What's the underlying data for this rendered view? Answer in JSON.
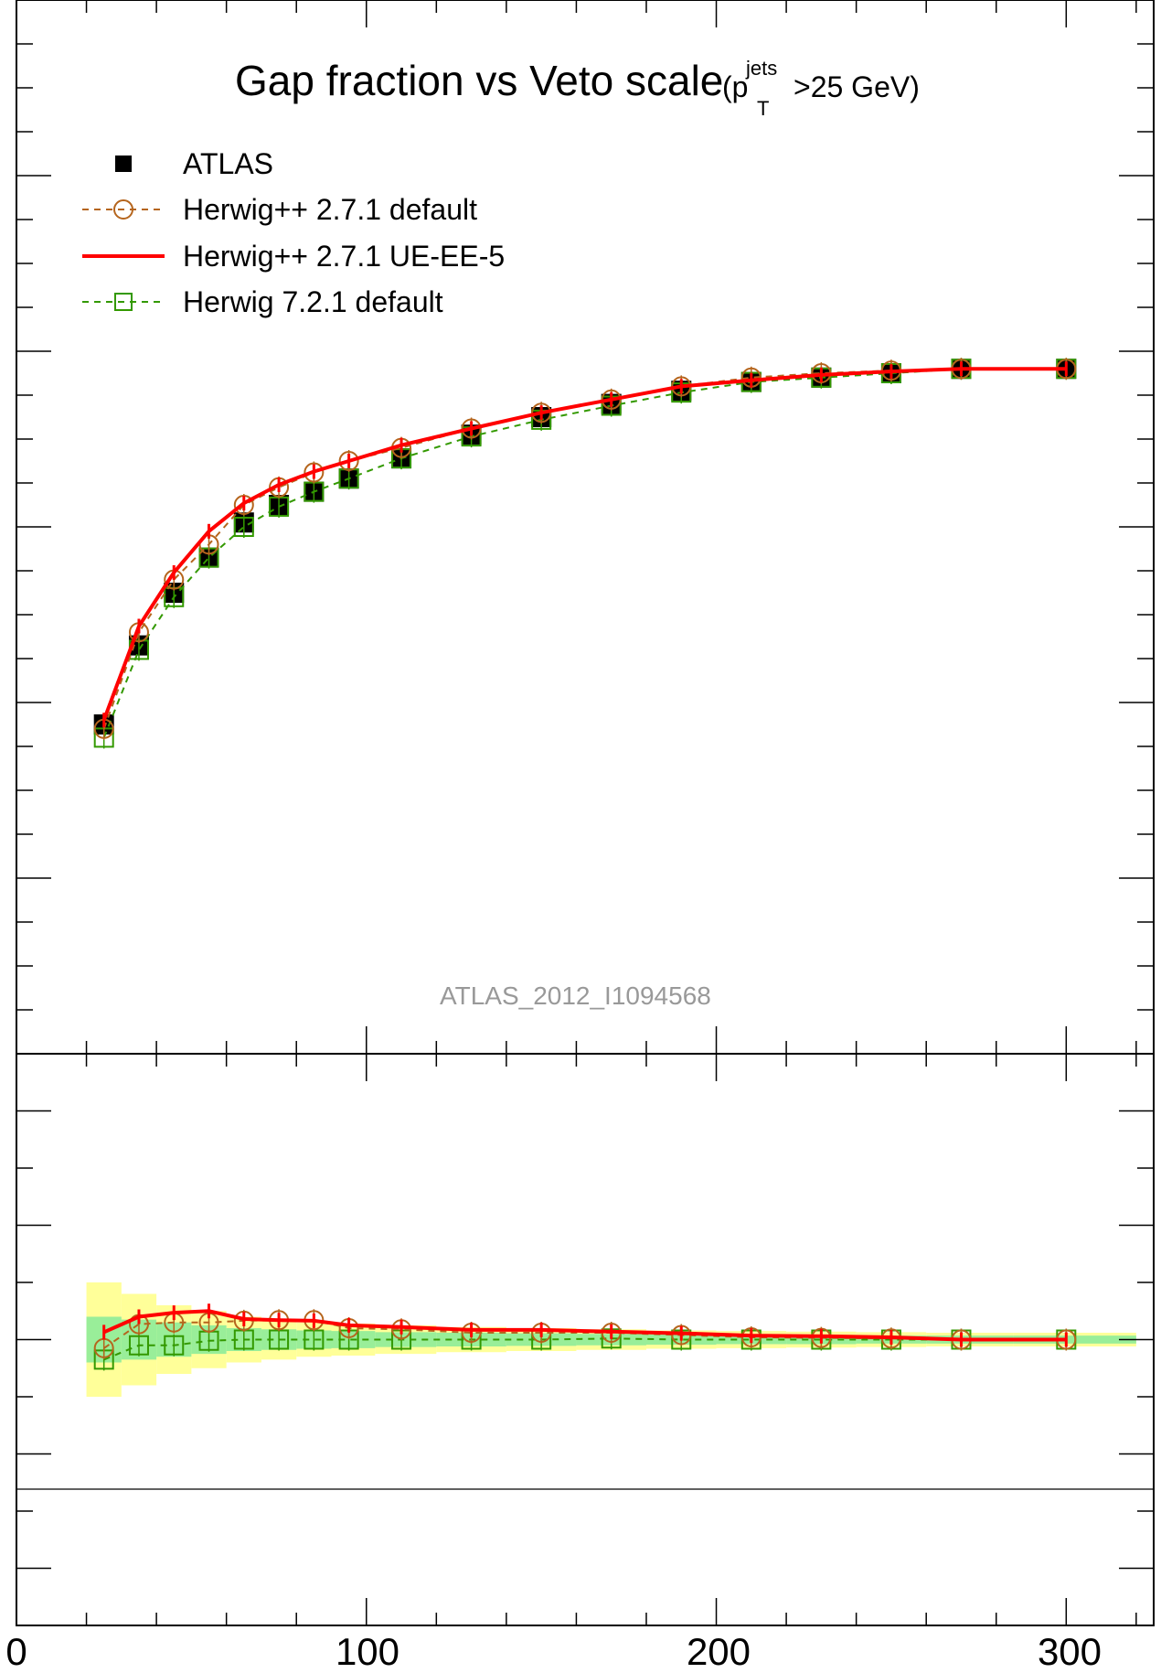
{
  "chart_data": [
    {
      "type": "line",
      "title": "Gap fraction vs Veto scale",
      "title_suffix": {
        "open": "(p",
        "superscript": "jets",
        "subscript": "T",
        "close": ">25 GeV)"
      },
      "watermark": "ATLAS_2012_I1094568",
      "xlim": [
        0,
        325
      ],
      "ylim": [
        0,
        1.2
      ],
      "grid": false,
      "legend_position": "top-left",
      "x": [
        25,
        35,
        45,
        55,
        65,
        75,
        85,
        95,
        110,
        130,
        150,
        170,
        190,
        210,
        230,
        250,
        270,
        300
      ],
      "series": [
        {
          "name": "ATLAS",
          "style": "black-filled-square",
          "color": "#000000",
          "values": [
            0.375,
            0.465,
            0.525,
            0.565,
            0.605,
            0.625,
            0.64,
            0.655,
            0.678,
            0.705,
            0.725,
            0.74,
            0.755,
            0.765,
            0.77,
            0.775,
            0.78,
            0.78
          ]
        },
        {
          "name": "Herwig++ 2.7.1 default",
          "style": "dashed-open-circle",
          "color": "#b5651d",
          "values": [
            0.37,
            0.48,
            0.54,
            0.58,
            0.625,
            0.645,
            0.662,
            0.675,
            0.69,
            0.712,
            0.73,
            0.745,
            0.76,
            0.77,
            0.775,
            0.778,
            0.78,
            0.78
          ]
        },
        {
          "name": "Herwig++ 2.7.1 UE-EE-5",
          "style": "solid-line",
          "color": "#ff0000",
          "values": [
            0.38,
            0.487,
            0.548,
            0.595,
            0.627,
            0.648,
            0.663,
            0.675,
            0.693,
            0.712,
            0.73,
            0.745,
            0.76,
            0.767,
            0.773,
            0.777,
            0.78,
            0.78
          ]
        },
        {
          "name": "Herwig 7.2.1 default",
          "style": "dashed-open-square",
          "color": "#339900",
          "values": [
            0.36,
            0.46,
            0.52,
            0.565,
            0.6,
            0.623,
            0.64,
            0.655,
            0.678,
            0.703,
            0.722,
            0.738,
            0.753,
            0.765,
            0.77,
            0.775,
            0.78,
            0.78
          ]
        }
      ]
    },
    {
      "type": "line",
      "title": "",
      "xlim": [
        0,
        325
      ],
      "ylim": [
        0.5,
        1.5
      ],
      "grid": false,
      "x_tick_labels": [
        "0",
        "100",
        "200",
        "300"
      ],
      "x_tick_values": [
        0,
        100,
        200,
        300
      ],
      "x": [
        25,
        35,
        45,
        55,
        65,
        75,
        85,
        95,
        110,
        130,
        150,
        170,
        190,
        210,
        230,
        250,
        270,
        300
      ],
      "band_stat_sys": [
        0.1,
        0.08,
        0.06,
        0.05,
        0.04,
        0.035,
        0.03,
        0.028,
        0.025,
        0.022,
        0.02,
        0.018,
        0.016,
        0.015,
        0.014,
        0.013,
        0.012,
        0.012
      ],
      "band_stat": [
        0.04,
        0.035,
        0.03,
        0.025,
        0.02,
        0.018,
        0.016,
        0.015,
        0.013,
        0.012,
        0.011,
        0.01,
        0.009,
        0.008,
        0.008,
        0.007,
        0.007,
        0.007
      ],
      "band_colors": {
        "stat_sys": "#ffff99",
        "stat": "#99ee99"
      },
      "series": [
        {
          "name": "Herwig++ 2.7.1 default",
          "color": "#b5651d",
          "values": [
            0.985,
            1.027,
            1.03,
            1.03,
            1.033,
            1.034,
            1.034,
            1.02,
            1.018,
            1.012,
            1.012,
            1.012,
            1.008,
            1.004,
            1.003,
            1.002,
            1.0,
            1.0
          ]
        },
        {
          "name": "Herwig++ 2.7.1 UE-EE-5",
          "color": "#ff0000",
          "values": [
            1.013,
            1.04,
            1.047,
            1.05,
            1.036,
            1.034,
            1.033,
            1.025,
            1.022,
            1.017,
            1.017,
            1.014,
            1.011,
            1.007,
            1.006,
            1.004,
            1.0,
            1.0
          ]
        },
        {
          "name": "Herwig 7.2.1 default",
          "color": "#339900",
          "values": [
            0.965,
            0.99,
            0.99,
            0.998,
            1.0,
            1.0,
            1.0,
            1.0,
            1.0,
            1.0,
            1.0,
            1.002,
            1.0,
            1.0,
            1.0,
            1.0,
            1.0,
            1.0
          ]
        }
      ]
    }
  ]
}
